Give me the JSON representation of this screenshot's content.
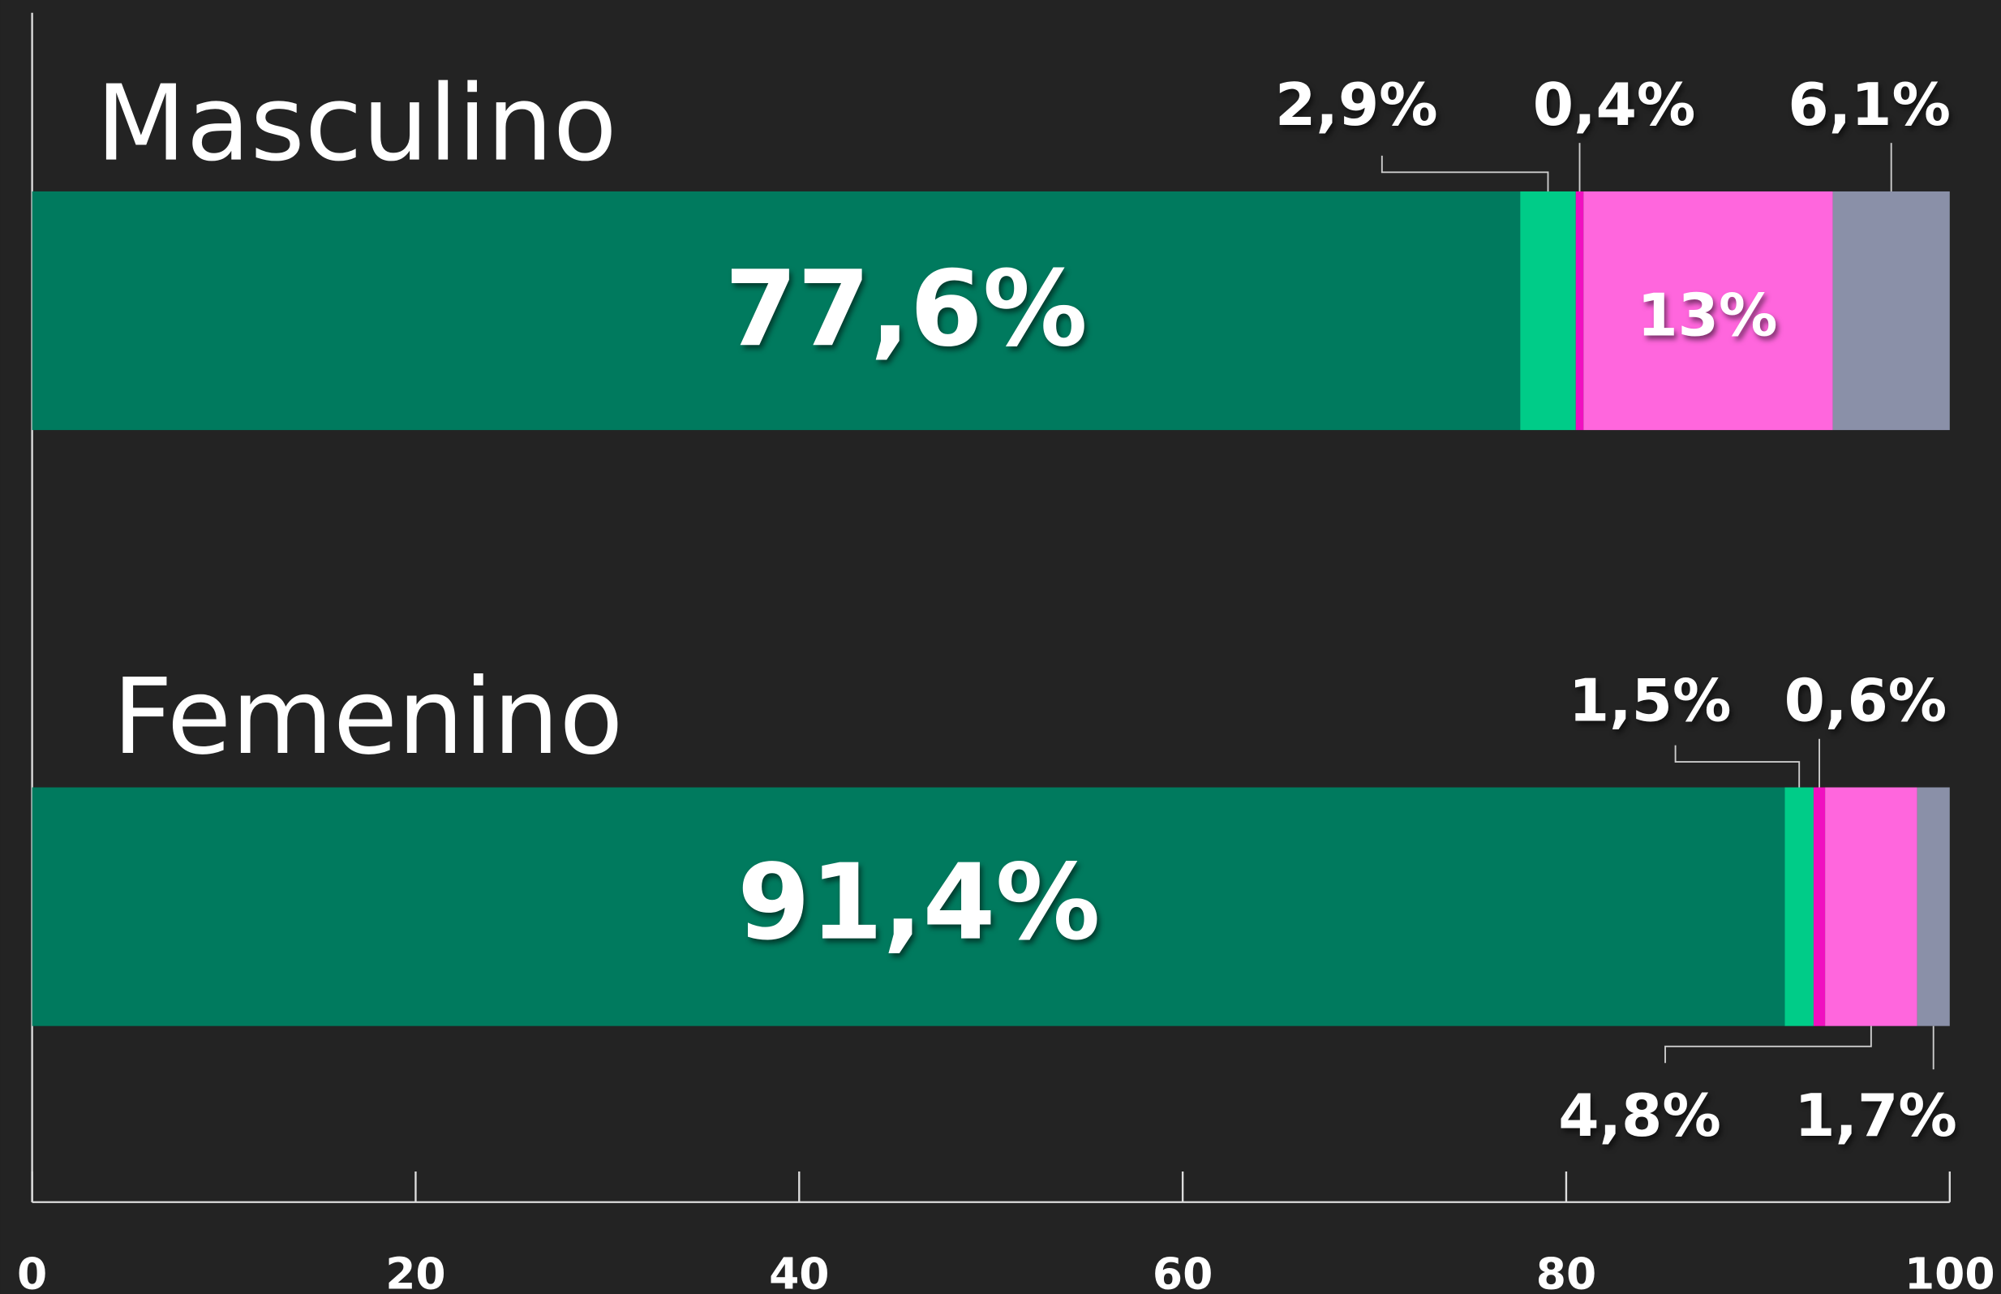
{
  "chart_data": {
    "type": "stacked-bar-horizontal",
    "categories": [
      "Masculino",
      "Femenino"
    ],
    "series": [
      {
        "color": "#007a5e",
        "values": [
          77.6,
          91.4
        ],
        "value_labels": [
          "77,6%",
          "91,4%"
        ]
      },
      {
        "color": "#00cc88",
        "values": [
          2.9,
          1.5
        ],
        "value_labels": [
          "2,9%",
          "1,5%"
        ]
      },
      {
        "color": "#f010c0",
        "values": [
          0.4,
          0.6
        ],
        "value_labels": [
          "0,4%",
          "0,6%"
        ]
      },
      {
        "color": "#ff66dd",
        "values": [
          13,
          4.8
        ],
        "value_labels": [
          "13%",
          "4,8%"
        ]
      },
      {
        "color": "#8a90a8",
        "values": [
          6.1,
          1.7
        ],
        "value_labels": [
          "6,1%",
          "1,7%"
        ]
      }
    ],
    "xlim": [
      0,
      100
    ],
    "xticks": [
      0,
      20,
      40,
      60,
      80,
      100
    ]
  }
}
